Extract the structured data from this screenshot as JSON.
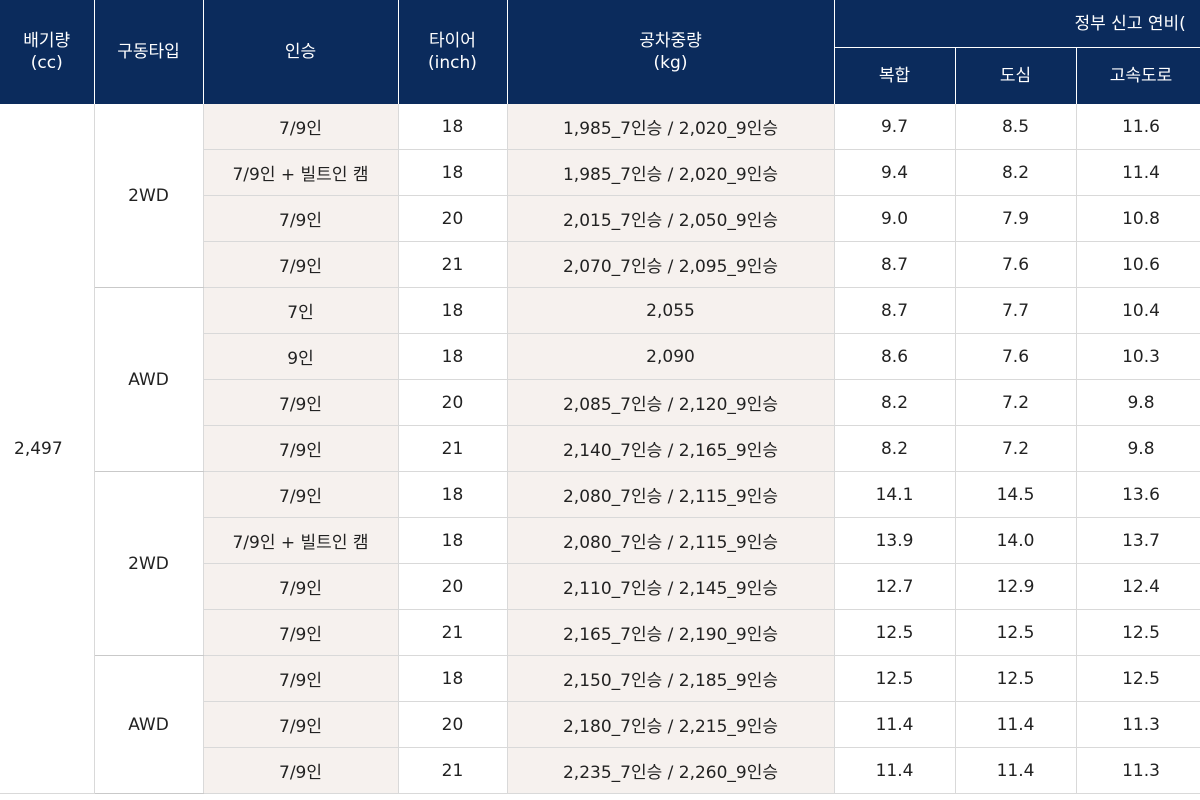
{
  "headers": {
    "engine": [
      "배기량",
      "(cc)"
    ],
    "drive": "구동타입",
    "seats": "인승",
    "tire": [
      "타이어",
      "(inch)"
    ],
    "weight": [
      "공차중량",
      "(kg)"
    ],
    "mpg_group": "정부 신고 연비(",
    "combined": "복합",
    "city": "도심",
    "highway": "고속도로"
  },
  "engine_value": "2,497",
  "groups": [
    {
      "drive": "2WD",
      "rows": [
        {
          "seats": "7/9인",
          "tire": "18",
          "weight": "1,985_7인승 / 2,020_9인승",
          "combined": "9.7",
          "city": "8.5",
          "highway": "11.6"
        },
        {
          "seats": "7/9인 + 빌트인 캠",
          "tire": "18",
          "weight": "1,985_7인승 / 2,020_9인승",
          "combined": "9.4",
          "city": "8.2",
          "highway": "11.4"
        },
        {
          "seats": "7/9인",
          "tire": "20",
          "weight": "2,015_7인승 / 2,050_9인승",
          "combined": "9.0",
          "city": "7.9",
          "highway": "10.8"
        },
        {
          "seats": "7/9인",
          "tire": "21",
          "weight": "2,070_7인승 / 2,095_9인승",
          "combined": "8.7",
          "city": "7.6",
          "highway": "10.6"
        }
      ]
    },
    {
      "drive": "AWD",
      "rows": [
        {
          "seats": "7인",
          "tire": "18",
          "weight": "2,055",
          "combined": "8.7",
          "city": "7.7",
          "highway": "10.4"
        },
        {
          "seats": "9인",
          "tire": "18",
          "weight": "2,090",
          "combined": "8.6",
          "city": "7.6",
          "highway": "10.3"
        },
        {
          "seats": "7/9인",
          "tire": "20",
          "weight": "2,085_7인승 / 2,120_9인승",
          "combined": "8.2",
          "city": "7.2",
          "highway": "9.8"
        },
        {
          "seats": "7/9인",
          "tire": "21",
          "weight": "2,140_7인승 / 2,165_9인승",
          "combined": "8.2",
          "city": "7.2",
          "highway": "9.8"
        }
      ]
    },
    {
      "drive": "2WD",
      "rows": [
        {
          "seats": "7/9인",
          "tire": "18",
          "weight": "2,080_7인승 / 2,115_9인승",
          "combined": "14.1",
          "city": "14.5",
          "highway": "13.6"
        },
        {
          "seats": "7/9인 + 빌트인 캠",
          "tire": "18",
          "weight": "2,080_7인승 / 2,115_9인승",
          "combined": "13.9",
          "city": "14.0",
          "highway": "13.7"
        },
        {
          "seats": "7/9인",
          "tire": "20",
          "weight": "2,110_7인승 / 2,145_9인승",
          "combined": "12.7",
          "city": "12.9",
          "highway": "12.4"
        },
        {
          "seats": "7/9인",
          "tire": "21",
          "weight": "2,165_7인승 / 2,190_9인승",
          "combined": "12.5",
          "city": "12.5",
          "highway": "12.5"
        }
      ]
    },
    {
      "drive": "AWD",
      "rows": [
        {
          "seats": "7/9인",
          "tire": "18",
          "weight": "2,150_7인승 / 2,185_9인승",
          "combined": "12.5",
          "city": "12.5",
          "highway": "12.5"
        },
        {
          "seats": "7/9인",
          "tire": "20",
          "weight": "2,180_7인승 / 2,215_9인승",
          "combined": "11.4",
          "city": "11.4",
          "highway": "11.3"
        },
        {
          "seats": "7/9인",
          "tire": "21",
          "weight": "2,235_7인승 / 2,260_9인승",
          "combined": "11.4",
          "city": "11.4",
          "highway": "11.3"
        }
      ]
    }
  ]
}
